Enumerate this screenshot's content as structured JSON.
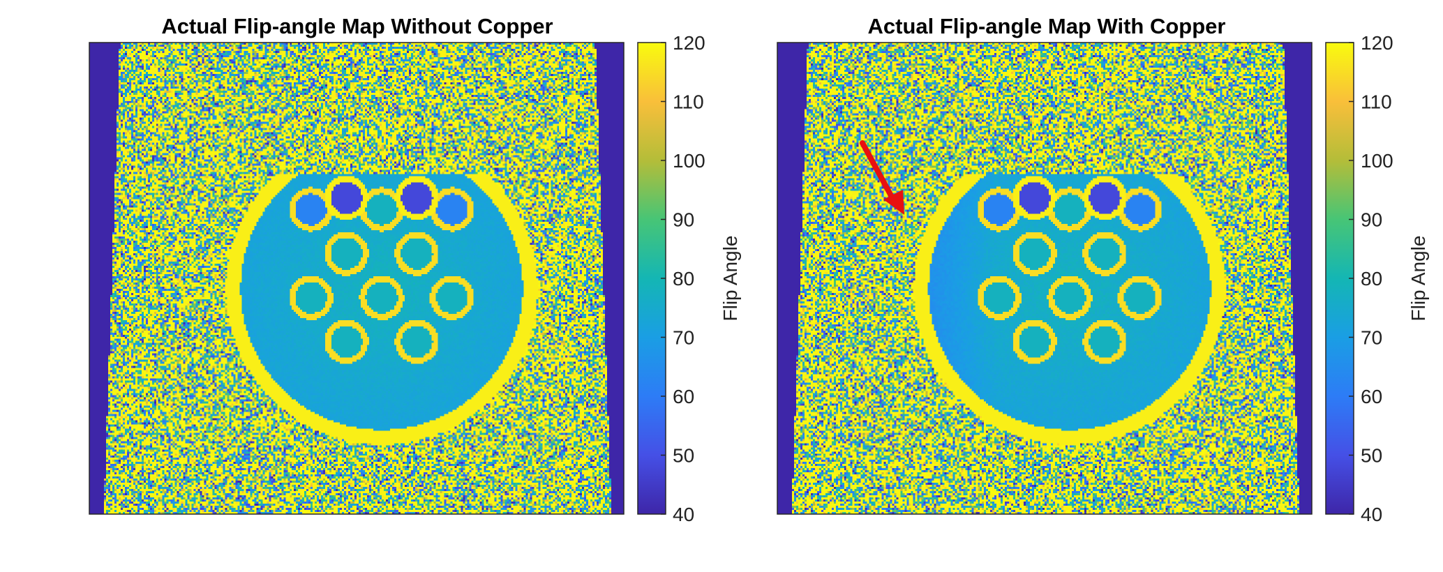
{
  "chart_data": [
    {
      "type": "heatmap",
      "title": "Actual Flip-angle Map Without Copper",
      "colorbar": {
        "label": "Flip Angle",
        "range": [
          40,
          120
        ],
        "ticks": [
          40,
          50,
          60,
          70,
          80,
          90,
          100,
          110,
          120
        ],
        "colormap": "parula"
      },
      "annotations": [],
      "description_values": {
        "phantom_mean": 80,
        "background": "noise 40-120",
        "corners": 40
      }
    },
    {
      "type": "heatmap",
      "title": "Actual Flip-angle Map With Copper",
      "colorbar": {
        "label": "Flip Angle",
        "range": [
          40,
          120
        ],
        "ticks": [
          40,
          50,
          60,
          70,
          80,
          90,
          100,
          110,
          120
        ],
        "colormap": "parula"
      },
      "annotations": [
        "red-arrow"
      ],
      "description_values": {
        "phantom_mean": 80,
        "background": "noise 40-120",
        "corners": 40
      }
    }
  ],
  "colors": {
    "arrow": "#e81010",
    "parula_40": "#3e26a8",
    "parula_80": "#14b6b4",
    "parula_120": "#f9fb0e"
  }
}
